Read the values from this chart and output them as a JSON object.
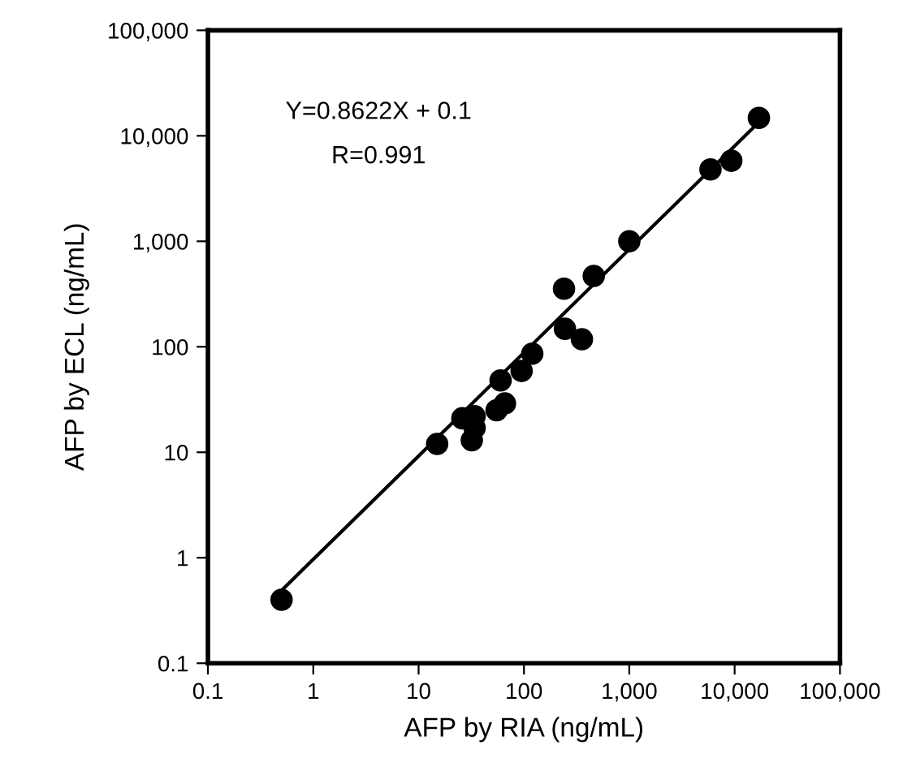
{
  "chart_data": {
    "type": "scatter",
    "xlabel": "AFP by RIA (ng/mL)",
    "ylabel": "AFP by ECL (ng/mL)",
    "log": "xy",
    "grid": false,
    "legend": false,
    "marker": "circle",
    "xlim": [
      0.1,
      100000
    ],
    "ylim": [
      0.1,
      100000
    ],
    "xticks": [
      0.1,
      1,
      10,
      100,
      {
        "value": 1000,
        "label": "1,000"
      },
      {
        "value": 10000,
        "label": "10,000"
      },
      {
        "value": 100000,
        "label": "100,000"
      }
    ],
    "yticks": [
      0.1,
      1,
      10,
      100,
      {
        "value": 1000,
        "label": "1,000"
      },
      {
        "value": 10000,
        "label": "10,000"
      },
      {
        "value": 100000,
        "label": "100,000"
      }
    ],
    "annotations": [
      "Y=0.8622X + 0.1",
      "R=0.991"
    ],
    "series": [
      {
        "type": "scatter",
        "color": "#000000",
        "x": [
          0.5,
          15,
          26,
          34,
          34,
          32,
          55,
          66,
          60,
          95,
          120,
          240,
          245,
          355,
          460,
          1000,
          5900,
          9300,
          17000
        ],
        "values": [
          0.4,
          12,
          21,
          22,
          17,
          13,
          25,
          29,
          48,
          59,
          86,
          355,
          148,
          118,
          470,
          1000,
          4800,
          5800,
          14800
        ]
      },
      {
        "type": "line",
        "color": "#000000",
        "marker": "none",
        "line_style": "solid",
        "x": [
          0.5,
          15500
        ],
        "values": [
          0.49,
          12300
        ]
      }
    ]
  }
}
